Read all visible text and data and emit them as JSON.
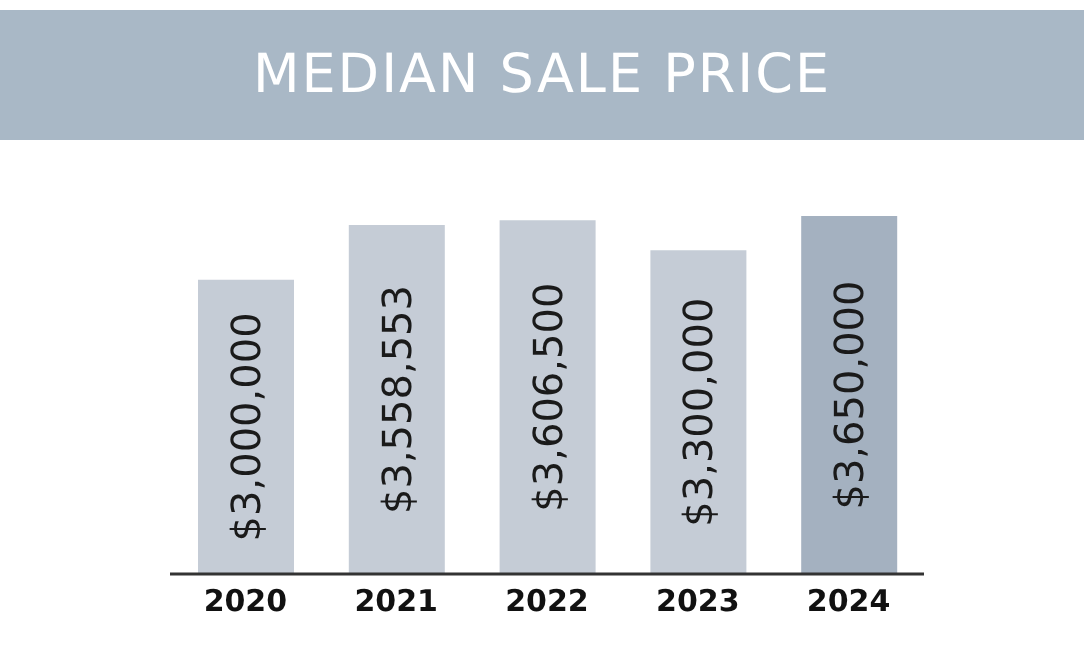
{
  "chart_data": {
    "type": "bar",
    "title": "MEDIAN SALE PRICE",
    "categories": [
      "2020",
      "2021",
      "2022",
      "2023",
      "2024"
    ],
    "values": [
      3000000,
      3558553,
      3606500,
      3300000,
      3650000
    ],
    "value_labels": [
      "$3,000,000",
      "$3,558,553",
      "$3,606,500",
      "$3,300,000",
      "$3,650,000"
    ],
    "colors": [
      "#c5ccd6",
      "#c5ccd6",
      "#c5ccd6",
      "#c5ccd6",
      "#a4b1c0"
    ]
  }
}
